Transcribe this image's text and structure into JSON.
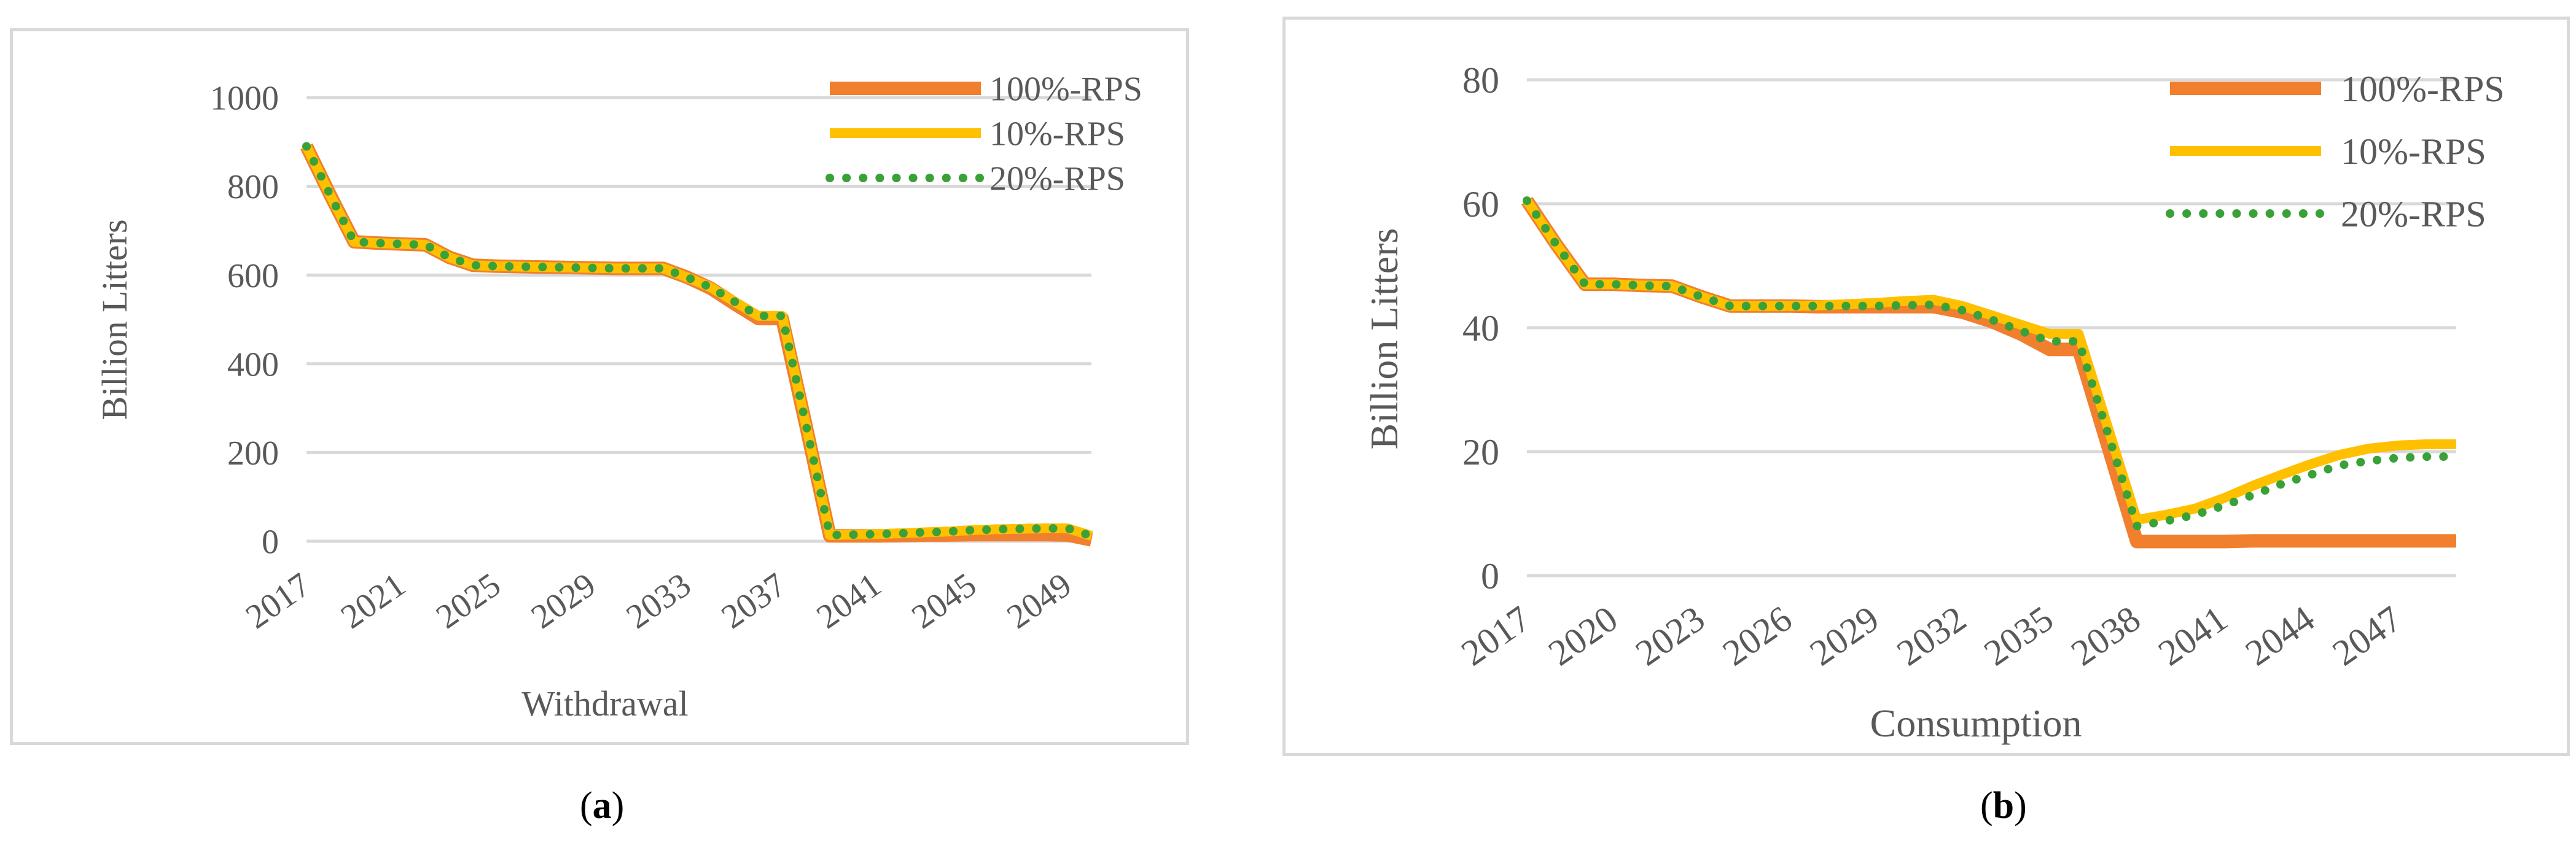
{
  "captions": {
    "a": "(a)",
    "a_letter": "a",
    "b": "(b)",
    "b_letter": "b"
  },
  "colors": {
    "s100": "#f07f2e",
    "s10": "#ffc000",
    "s20": "#3aa138",
    "grid": "#d9d9d9",
    "text": "#595959"
  },
  "chart_data": [
    {
      "type": "line",
      "id": "a",
      "title": "",
      "xlabel": "Withdrawal",
      "ylabel": "Billion Litters",
      "x": [
        2017,
        2018,
        2019,
        2020,
        2021,
        2022,
        2023,
        2024,
        2025,
        2026,
        2027,
        2028,
        2029,
        2030,
        2031,
        2032,
        2033,
        2034,
        2035,
        2036,
        2037,
        2038,
        2039,
        2040,
        2041,
        2042,
        2043,
        2044,
        2045,
        2046,
        2047,
        2048,
        2049,
        2050
      ],
      "xticks": [
        2017,
        2021,
        2025,
        2029,
        2033,
        2037,
        2041,
        2045,
        2049
      ],
      "xtick_labels": [
        "2017",
        "2021",
        "2025",
        "2029",
        "2033",
        "2037",
        "2041",
        "2045",
        "2049"
      ],
      "yticks": [
        0,
        200,
        400,
        600,
        800,
        1000
      ],
      "ytick_labels": [
        "0",
        "200",
        "400",
        "600",
        "800",
        "1000"
      ],
      "ylim": [
        0,
        1000
      ],
      "series": [
        {
          "name": "100%-RPS",
          "style": "solid",
          "values": [
            890,
            780,
            675,
            672,
            670,
            668,
            640,
            622,
            620,
            619,
            618,
            617,
            616,
            615,
            615,
            615,
            595,
            570,
            535,
            502,
            502,
            260,
            12,
            12,
            12,
            13,
            14,
            14,
            15,
            15,
            15,
            15,
            14,
            3
          ]
        },
        {
          "name": "10%-RPS",
          "style": "solid",
          "values": [
            890,
            780,
            675,
            672,
            670,
            668,
            640,
            622,
            620,
            619,
            618,
            617,
            616,
            615,
            615,
            615,
            595,
            572,
            540,
            508,
            508,
            262,
            14,
            15,
            16,
            18,
            20,
            22,
            25,
            27,
            28,
            29,
            29,
            12
          ]
        },
        {
          "name": "20%-RPS",
          "style": "dotted",
          "values": [
            890,
            780,
            675,
            672,
            670,
            668,
            640,
            622,
            620,
            619,
            618,
            617,
            616,
            615,
            615,
            615,
            595,
            572,
            540,
            508,
            508,
            262,
            14,
            15,
            16,
            18,
            20,
            22,
            25,
            27,
            28,
            29,
            29,
            12
          ]
        }
      ],
      "legend": {
        "position": "top-right",
        "entries": [
          "100%-RPS",
          "10%-RPS",
          "20%-RPS"
        ]
      }
    },
    {
      "type": "line",
      "id": "b",
      "title": "",
      "xlabel": "Consumption",
      "ylabel": "Billion Litters",
      "x": [
        2017,
        2018,
        2019,
        2020,
        2021,
        2022,
        2023,
        2024,
        2025,
        2026,
        2027,
        2028,
        2029,
        2030,
        2031,
        2032,
        2033,
        2034,
        2035,
        2036,
        2037,
        2038,
        2039,
        2040,
        2041,
        2042,
        2043,
        2044,
        2045,
        2046,
        2047,
        2048,
        2049
      ],
      "xticks": [
        2017,
        2020,
        2023,
        2026,
        2029,
        2032,
        2035,
        2038,
        2041,
        2044,
        2047
      ],
      "xtick_labels": [
        "2017",
        "2020",
        "2023",
        "2026",
        "2029",
        "2032",
        "2035",
        "2038",
        "2041",
        "2044",
        "2047"
      ],
      "yticks": [
        0,
        20,
        40,
        60,
        80
      ],
      "ytick_labels": [
        "0",
        "20",
        "40",
        "60",
        "80"
      ],
      "ylim": [
        0,
        80
      ],
      "series": [
        {
          "name": "100%-RPS",
          "style": "solid",
          "values": [
            60.5,
            53.5,
            47,
            47,
            46.8,
            46.7,
            45,
            43.5,
            43.5,
            43.5,
            43.4,
            43.4,
            43.4,
            43.4,
            43.4,
            42.5,
            41,
            39,
            36.5,
            36.5,
            21,
            5.5,
            5.5,
            5.5,
            5.5,
            5.6,
            5.6,
            5.6,
            5.6,
            5.6,
            5.6,
            5.6,
            5.6
          ]
        },
        {
          "name": "10%-RPS",
          "style": "solid",
          "values": [
            60.5,
            53.5,
            47,
            47,
            46.8,
            46.7,
            45,
            43.5,
            43.5,
            43.5,
            43.6,
            43.8,
            44,
            44.3,
            44.5,
            43.5,
            42,
            40.5,
            39,
            39,
            24,
            9,
            9.8,
            10.8,
            12.5,
            14.5,
            16.3,
            18,
            19.5,
            20.5,
            21,
            21.2,
            21.2
          ]
        },
        {
          "name": "20%-RPS",
          "style": "dotted",
          "values": [
            60.5,
            53.5,
            47,
            47,
            46.8,
            46.7,
            45,
            43.5,
            43.5,
            43.5,
            43.5,
            43.5,
            43.5,
            43.6,
            43.7,
            42.8,
            41.3,
            39.5,
            37.8,
            37.8,
            23,
            8,
            8.8,
            9.8,
            11.3,
            13,
            14.8,
            16.3,
            17.8,
            18.5,
            19,
            19.2,
            19.2
          ]
        }
      ],
      "legend": {
        "position": "top-right",
        "entries": [
          "100%-RPS",
          "10%-RPS",
          "20%-RPS"
        ]
      }
    }
  ]
}
